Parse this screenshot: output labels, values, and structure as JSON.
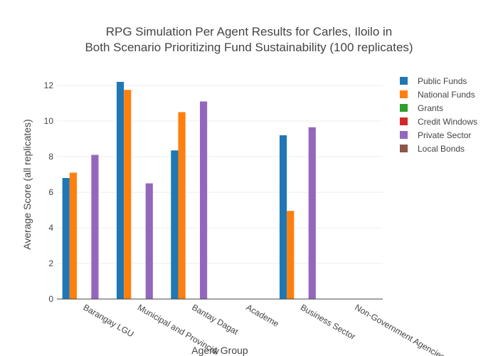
{
  "chart_data": {
    "type": "bar",
    "title_lines": [
      "RPG Simulation Per Agent Results for Carles, Iloilo in",
      "Both Scenario Prioritizing Fund Sustainability (100 replicates)"
    ],
    "xlabel": "Agent Group",
    "ylabel": "Average Score (all replicates)",
    "ylim": [
      0,
      13
    ],
    "yticks": [
      0,
      2,
      4,
      6,
      8,
      10,
      12
    ],
    "grid": true,
    "legend_position": "top-right",
    "categories": [
      "Barangay LGU",
      "Municipal and Provincial",
      "Bantay Dagat",
      "Academe",
      "Business Sector",
      "Non-Government Agencies"
    ],
    "series": [
      {
        "name": "Public Funds",
        "color": "#1f77b4",
        "values": [
          6.8,
          12.2,
          8.35,
          0,
          9.2,
          0
        ]
      },
      {
        "name": "National Funds",
        "color": "#ff7f0e",
        "values": [
          7.1,
          11.75,
          10.5,
          0,
          4.95,
          0
        ]
      },
      {
        "name": "Grants",
        "color": "#2ca02c",
        "values": [
          0,
          0,
          0,
          0,
          0,
          0
        ]
      },
      {
        "name": "Credit Windows",
        "color": "#d62728",
        "values": [
          0,
          0,
          0,
          0,
          0,
          0
        ]
      },
      {
        "name": "Private Sector",
        "color": "#9467bd",
        "values": [
          8.1,
          6.5,
          11.1,
          0,
          9.65,
          0
        ]
      },
      {
        "name": "Local Bonds",
        "color": "#8c564b",
        "values": [
          0,
          0,
          0,
          0,
          0,
          0
        ]
      }
    ]
  }
}
